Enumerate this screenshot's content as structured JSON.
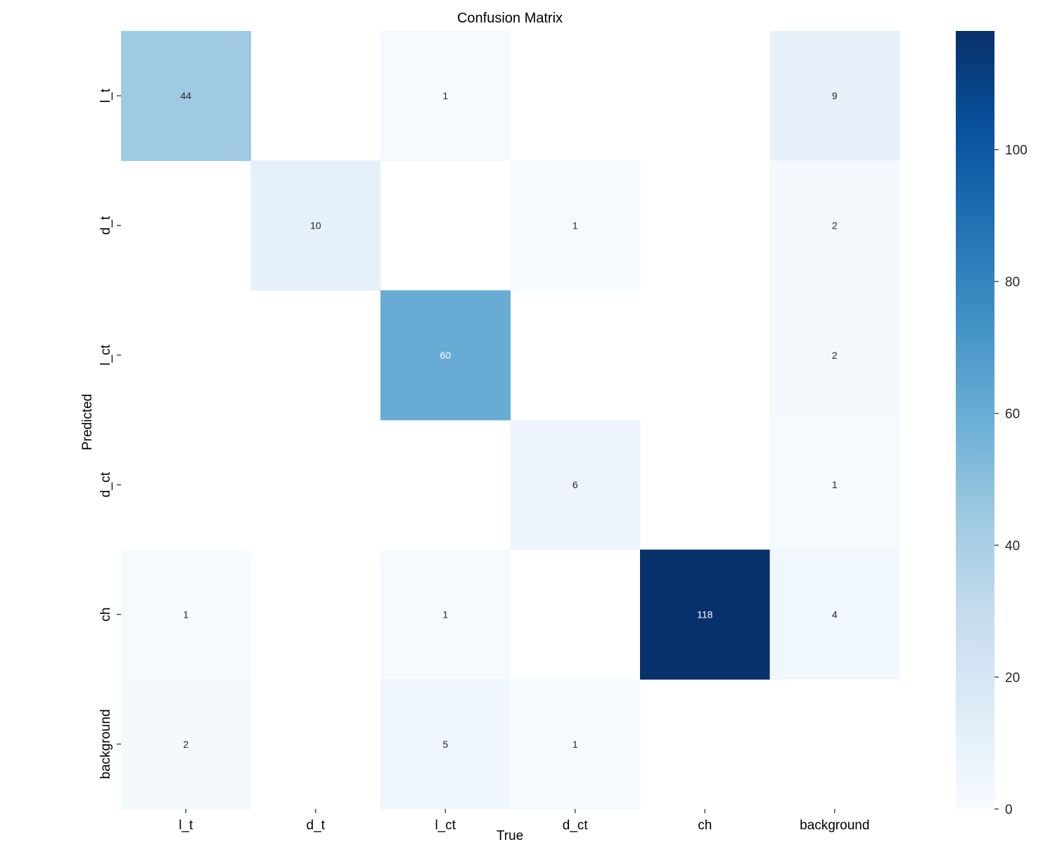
{
  "chart_data": {
    "type": "heatmap",
    "title": "Confusion Matrix",
    "xlabel": "True",
    "ylabel": "Predicted",
    "x_categories": [
      "l_t",
      "d_t",
      "l_ct",
      "d_ct",
      "ch",
      "background"
    ],
    "y_categories": [
      "l_t",
      "d_t",
      "l_ct",
      "d_ct",
      "ch",
      "background"
    ],
    "values": [
      [
        44,
        null,
        1,
        null,
        null,
        9
      ],
      [
        null,
        10,
        null,
        1,
        null,
        2
      ],
      [
        null,
        null,
        60,
        null,
        null,
        2
      ],
      [
        null,
        null,
        null,
        6,
        null,
        1
      ],
      [
        1,
        null,
        1,
        null,
        118,
        4
      ],
      [
        2,
        null,
        5,
        1,
        null,
        null
      ]
    ],
    "colormap": "Blues",
    "colorbar": {
      "range": [
        0,
        118
      ],
      "ticks": [
        0,
        20,
        40,
        60,
        80,
        100
      ]
    },
    "grid": false
  }
}
